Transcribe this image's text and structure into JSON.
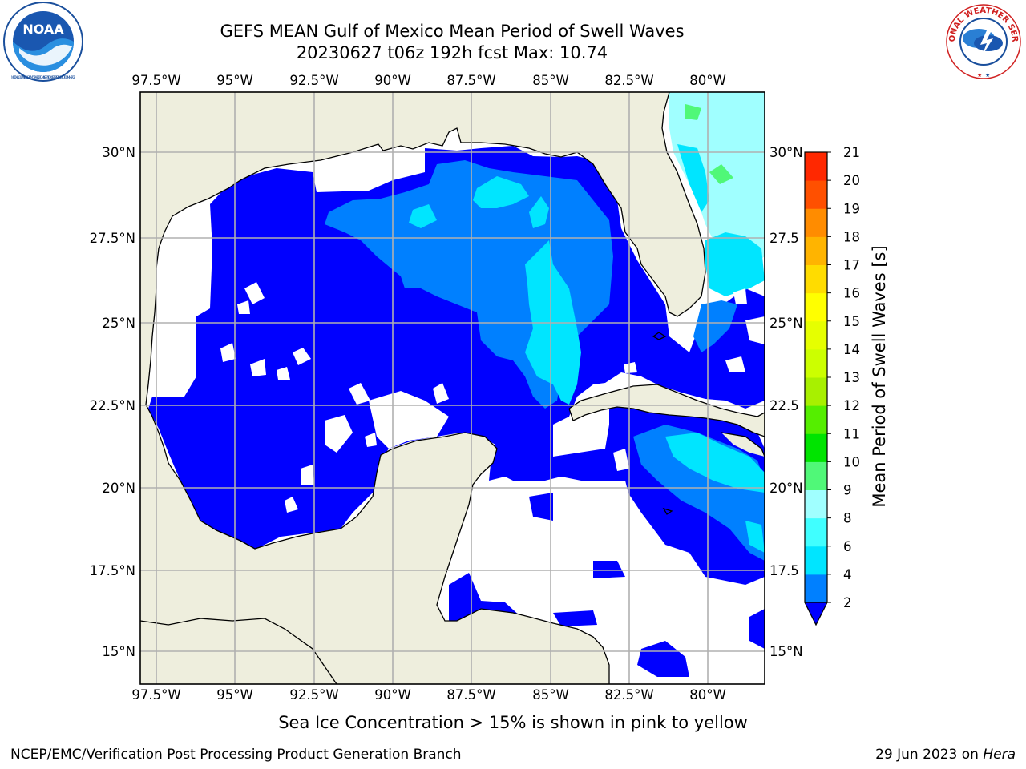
{
  "header": {
    "title_line1": "GEFS MEAN Gulf of Mexico Mean Period of Swell Waves",
    "title_line2": "20230627 t06z 192h fcst   Max: 10.74"
  },
  "logos": {
    "left": "noaa-logo",
    "left_text": "NOAA",
    "left_ring_text": "NATIONAL OCEANIC AND ATMOSPHERIC ADMINISTRATION · U.S. DEPARTMENT OF COMMERCE",
    "right": "nws-logo",
    "right_ring_text": "NATIONAL WEATHER SERVICE"
  },
  "map": {
    "lon_labels": [
      "97.5°W",
      "95°W",
      "92.5°W",
      "90°W",
      "87.5°W",
      "85°W",
      "82.5°W",
      "80°W"
    ],
    "lat_labels": [
      "30°N",
      "27.5°N",
      "25°N",
      "22.5°N",
      "20°N",
      "17.5°N",
      "15°N"
    ],
    "lat_labels_right": [
      "30°N",
      "27.5",
      "25°N",
      "22.5",
      "20°N",
      "17.5",
      "15°N"
    ],
    "colors": {
      "land": "#eeeedd",
      "grid": "#b0b0b0",
      "coast": "#000000",
      "nodata": "#ffffff"
    }
  },
  "colorbar": {
    "label": "Mean Period of Swell Waves [s]",
    "tick_labels": [
      "2",
      "4",
      "6",
      "8",
      "9",
      "10",
      "11",
      "12",
      "13",
      "14",
      "15",
      "16",
      "17",
      "18",
      "19",
      "20",
      "21"
    ],
    "colors": [
      "#0000ff",
      "#0080ff",
      "#00e5ff",
      "#40ffff",
      "#a0ffff",
      "#50f878",
      "#00e400",
      "#55ee00",
      "#a8f000",
      "#ccff00",
      "#e6ff00",
      "#ffff00",
      "#ffdc00",
      "#ffb400",
      "#ff8c00",
      "#ff5000",
      "#ff2800",
      "#ff0000"
    ]
  },
  "footer": {
    "note": "Sea Ice Concentration > 15% is shown in pink to yellow",
    "credit": "NCEP/EMC/Verification Post Processing Product Generation Branch",
    "date": "29 Jun 2023 on",
    "host": "Hera"
  }
}
